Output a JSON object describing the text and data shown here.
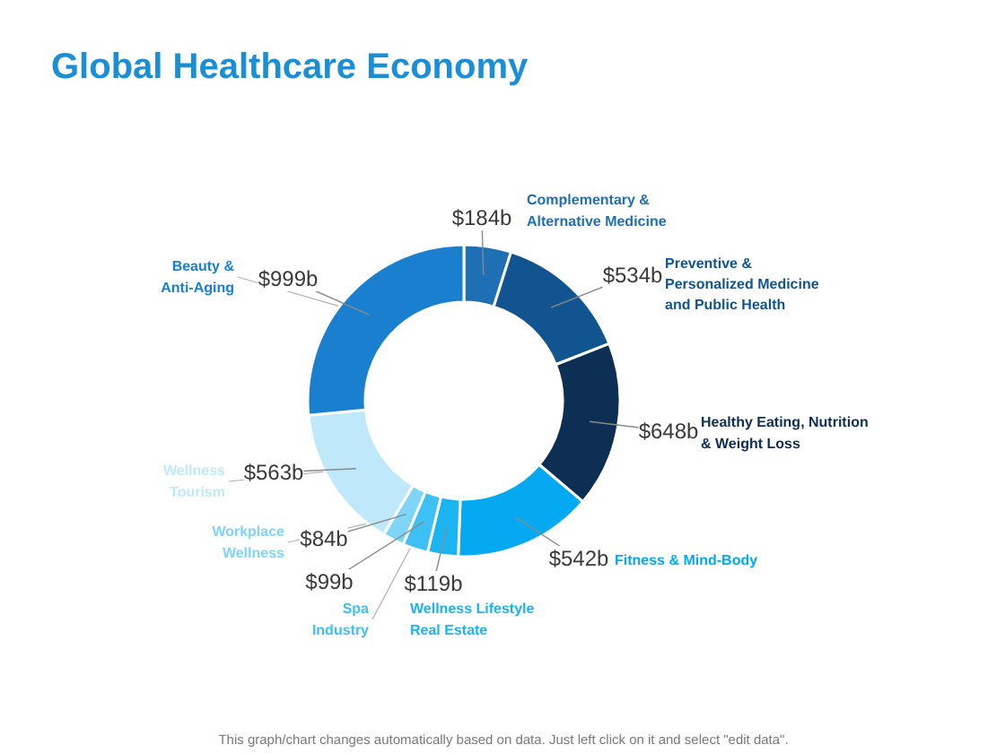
{
  "chart_data": {
    "type": "donut",
    "title": "Global Healthcare Economy",
    "categories": [
      "Complementary & Alternative Medicine",
      "Preventive & Personalized Medicine and Public Health",
      "Healthy Eating, Nutrition & Weight Loss",
      "Fitness & Mind-Body",
      "Wellness Lifestyle Real Estate",
      "Spa Industry",
      "Workplace Wellness",
      "Wellness Tourism",
      "Beauty & Anti-Aging"
    ],
    "values": [
      184,
      534,
      648,
      542,
      119,
      99,
      84,
      563,
      999
    ],
    "value_labels": [
      "$184b",
      "$534b",
      "$648b",
      "$542b",
      "$119b",
      "$99b",
      "$84b",
      "$563b",
      "$999b"
    ],
    "colors": [
      "#1f6fb5",
      "#12548f",
      "#0d2f53",
      "#04a9f2",
      "#1bb4f3",
      "#3ec0f5",
      "#7fd5f8",
      "#bfe9fb",
      "#1b7fcf"
    ],
    "annotations": [
      "This graph/chart changes automatically based on data. Just left click on it and select \"edit data\"."
    ]
  }
}
